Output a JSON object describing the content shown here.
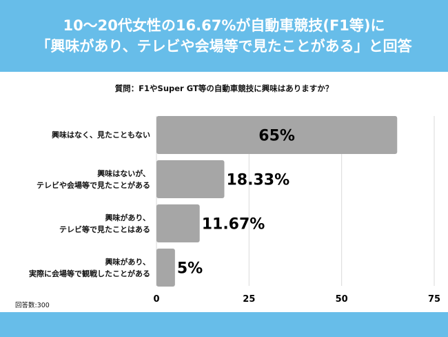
{
  "header": {
    "title_line1": "10〜20代女性の16.67%が自動車競技(F1等)に",
    "title_line2": "「興味があり、テレビや会場等で見たことがある」と回答"
  },
  "question": "質問：F1やSuper GT等の自動車競技に興味はありますか？",
  "note": "回答数:300",
  "colors": {
    "header": "#67bde9",
    "bar": "#a6a6a6",
    "grid": "#d9d9d9"
  },
  "chart_data": {
    "type": "bar",
    "orientation": "horizontal",
    "categories": [
      [
        "興味はなく、見たこともない"
      ],
      [
        "興味はないが、",
        "テレビや会場等で見たことがある"
      ],
      [
        "興味があり、",
        "テレビ等で見たことはある"
      ],
      [
        "興味があり、",
        "実際に会場等で観戦したことがある"
      ]
    ],
    "values": [
      65,
      18.33,
      11.67,
      5
    ],
    "data_labels": [
      "65%",
      "18.33%",
      "11.67%",
      "5%"
    ],
    "xlim": [
      0,
      75
    ],
    "xticks": [
      "0",
      "25",
      "50",
      "75"
    ],
    "grid": true
  }
}
